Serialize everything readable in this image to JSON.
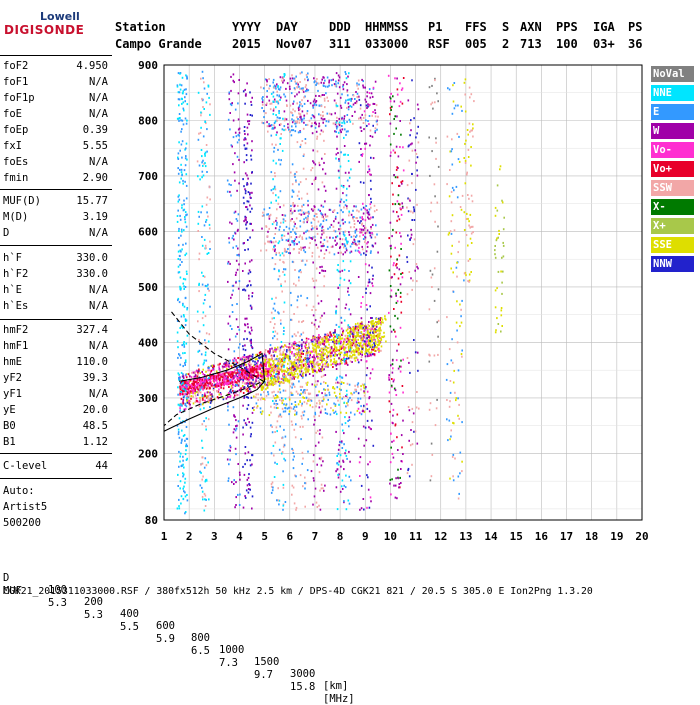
{
  "logo": {
    "brand": "Lowell",
    "name": "DIGISONDE"
  },
  "header": {
    "labels": [
      "Station",
      "YYYY",
      "DAY",
      "DDD",
      "HHMMSS",
      "P1",
      "FFS",
      "S",
      "AXN",
      "PPS",
      "IGA",
      "PS"
    ],
    "values": [
      "Campo Grande",
      "2015",
      "Nov07",
      "311",
      "033000",
      "RSF",
      "005",
      "2",
      "713",
      "100",
      "03+",
      "36"
    ]
  },
  "params": [
    {
      "k": "foF2",
      "v": "4.950"
    },
    {
      "k": "foF1",
      "v": "N/A"
    },
    {
      "k": "foF1p",
      "v": "N/A"
    },
    {
      "k": "foE",
      "v": "N/A"
    },
    {
      "k": "foEp",
      "v": "0.39"
    },
    {
      "k": "fxI",
      "v": "5.55"
    },
    {
      "k": "foEs",
      "v": "N/A"
    },
    {
      "k": "fmin",
      "v": "2.90"
    },
    {
      "k": "MUF(D)",
      "v": "15.77"
    },
    {
      "k": "M(D)",
      "v": "3.19"
    },
    {
      "k": "D",
      "v": "N/A"
    },
    {
      "k": "h`F",
      "v": "330.0"
    },
    {
      "k": "h`F2",
      "v": "330.0"
    },
    {
      "k": "h`E",
      "v": "N/A"
    },
    {
      "k": "h`Es",
      "v": "N/A"
    },
    {
      "k": "hmF2",
      "v": "327.4"
    },
    {
      "k": "hmF1",
      "v": "N/A"
    },
    {
      "k": "hmE",
      "v": "110.0"
    },
    {
      "k": "yF2",
      "v": "39.3"
    },
    {
      "k": "yF1",
      "v": "N/A"
    },
    {
      "k": "yE",
      "v": "20.0"
    },
    {
      "k": "B0",
      "v": "48.5"
    },
    {
      "k": "B1",
      "v": "1.12"
    },
    {
      "k": "C-level",
      "v": "44"
    }
  ],
  "auto": {
    "line1": "Auto:",
    "line2": "Artist5",
    "line3": "500200"
  },
  "legend": [
    {
      "label": "NoVal",
      "color": "#808080"
    },
    {
      "label": "NNE",
      "color": "#00e5ff"
    },
    {
      "label": "E",
      "color": "#3399ff"
    },
    {
      "label": "W",
      "color": "#a000a8"
    },
    {
      "label": "Vo-",
      "color": "#ff2ed1"
    },
    {
      "label": "Vo+",
      "color": "#e8002a"
    },
    {
      "label": "SSW",
      "color": "#f2a7a7"
    },
    {
      "label": "X-",
      "color": "#007a00"
    },
    {
      "label": "X+",
      "color": "#a8c84a"
    },
    {
      "label": "SSE",
      "color": "#dede00"
    },
    {
      "label": "NNW",
      "color": "#2222cc"
    }
  ],
  "footer": {
    "d_label": "D",
    "d_values": [
      "100",
      "200",
      "400",
      "600",
      "800",
      "1000",
      "1500",
      "3000"
    ],
    "d_unit": "[km]",
    "muf_label": "MUF",
    "muf_values": [
      "5.3",
      "5.3",
      "5.5",
      "5.9",
      "6.5",
      "7.3",
      "9.7",
      "15.8"
    ],
    "muf_unit": "[MHz]",
    "info": "CGK21_2015311033000.RSF / 380fx512h 50 kHz 2.5 km / DPS-4D CGK21 821 / 20.5 S 305.0 E Ion2Png 1.3.20"
  },
  "chart_data": {
    "type": "scatter",
    "xlim": [
      1,
      20
    ],
    "ylim": [
      80,
      900
    ],
    "x_ticks": [
      "1",
      "2",
      "3",
      "4",
      "5",
      "6",
      "7",
      "8",
      "9",
      "10",
      "11",
      "12",
      "13",
      "14",
      "15",
      "16",
      "17",
      "18",
      "19",
      "20"
    ],
    "y_ticks": [
      "80",
      "200",
      "300",
      "400",
      "500",
      "600",
      "700",
      "800",
      "900"
    ],
    "grid": true,
    "clusters": [
      {
        "name": "F2 trace",
        "fmin": 1.6,
        "fmax": 9.6,
        "hmin": 310,
        "hmax": 460,
        "n": 1400,
        "colors": [
          "#e8002a",
          "#ff2ed1",
          "#dede00",
          "#a000a8",
          "#f2a7a7",
          "#2222cc"
        ]
      },
      {
        "name": "F2 trace core",
        "fmin": 1.6,
        "fmax": 5.2,
        "hmin": 318,
        "hmax": 370,
        "n": 500,
        "colors": [
          "#e8002a",
          "#ff2ed1"
        ]
      },
      {
        "name": "F2 trace yellow",
        "fmin": 4.8,
        "fmax": 9.8,
        "hmin": 340,
        "hmax": 460,
        "n": 500,
        "colors": [
          "#dede00"
        ]
      },
      {
        "name": "sub-trace low",
        "fmin": 4.5,
        "fmax": 9.0,
        "hmin": 270,
        "hmax": 330,
        "n": 220,
        "colors": [
          "#f2a7a7",
          "#3399ff",
          "#dede00"
        ]
      },
      {
        "name": "multi-hop 2",
        "fmin": 4.8,
        "fmax": 9.5,
        "hmin": 560,
        "hmax": 650,
        "n": 320,
        "colors": [
          "#f2a7a7",
          "#a000a8",
          "#3399ff"
        ]
      },
      {
        "name": "multi-hop 3",
        "fmin": 4.8,
        "fmax": 9.5,
        "hmin": 780,
        "hmax": 880,
        "n": 320,
        "colors": [
          "#f2a7a7",
          "#3399ff",
          "#a000a8"
        ]
      },
      {
        "name": "column 1.6",
        "fmin": 1.5,
        "fmax": 1.9,
        "hmin": 90,
        "hmax": 890,
        "n": 280,
        "colors": [
          "#00e5ff",
          "#3399ff"
        ]
      },
      {
        "name": "column 2.5",
        "fmin": 2.3,
        "fmax": 2.8,
        "hmin": 90,
        "hmax": 890,
        "n": 180,
        "colors": [
          "#00e5ff",
          "#3399ff",
          "#f2a7a7"
        ]
      },
      {
        "name": "column 3.7",
        "fmin": 3.5,
        "fmax": 4.0,
        "hmin": 90,
        "hmax": 890,
        "n": 160,
        "colors": [
          "#3399ff",
          "#a000a8"
        ]
      },
      {
        "name": "column 4.2",
        "fmin": 4.1,
        "fmax": 4.5,
        "hmin": 100,
        "hmax": 880,
        "n": 200,
        "colors": [
          "#a000a8",
          "#2222cc"
        ]
      },
      {
        "name": "column 5.5",
        "fmin": 5.2,
        "fmax": 5.8,
        "hmin": 100,
        "hmax": 890,
        "n": 220,
        "colors": [
          "#3399ff",
          "#00e5ff",
          "#f2a7a7"
        ]
      },
      {
        "name": "column 6.3",
        "fmin": 6.0,
        "fmax": 6.7,
        "hmin": 100,
        "hmax": 890,
        "n": 200,
        "colors": [
          "#f2a7a7",
          "#3399ff"
        ]
      },
      {
        "name": "column 7.0",
        "fmin": 6.8,
        "fmax": 7.4,
        "hmin": 100,
        "hmax": 880,
        "n": 180,
        "colors": [
          "#a000a8",
          "#f2a7a7"
        ]
      },
      {
        "name": "column 8.0",
        "fmin": 7.8,
        "fmax": 8.4,
        "hmin": 100,
        "hmax": 890,
        "n": 220,
        "colors": [
          "#3399ff",
          "#00e5ff",
          "#a000a8"
        ]
      },
      {
        "name": "column 8.9",
        "fmin": 8.7,
        "fmax": 9.3,
        "hmin": 100,
        "hmax": 880,
        "n": 180,
        "colors": [
          "#a000a8",
          "#ff2ed1",
          "#2222cc"
        ]
      },
      {
        "name": "column 10.2",
        "fmin": 9.9,
        "fmax": 10.5,
        "hmin": 120,
        "hmax": 890,
        "n": 200,
        "colors": [
          "#e8002a",
          "#007a00",
          "#ff2ed1",
          "#a000a8"
        ]
      },
      {
        "name": "column 10.8",
        "fmin": 10.6,
        "fmax": 11.1,
        "hmin": 150,
        "hmax": 880,
        "n": 90,
        "colors": [
          "#a000a8",
          "#2222cc",
          "#f2a7a7"
        ]
      },
      {
        "name": "column 11.7",
        "fmin": 11.5,
        "fmax": 11.9,
        "hmin": 150,
        "hmax": 880,
        "n": 50,
        "colors": [
          "#808080",
          "#f2a7a7"
        ]
      },
      {
        "name": "column 12.5",
        "fmin": 12.2,
        "fmax": 12.9,
        "hmin": 120,
        "hmax": 880,
        "n": 110,
        "colors": [
          "#f2a7a7",
          "#3399ff",
          "#dede00"
        ]
      },
      {
        "name": "column 13.1",
        "fmin": 12.9,
        "fmax": 13.3,
        "hmin": 500,
        "hmax": 880,
        "n": 60,
        "colors": [
          "#f2a7a7",
          "#dede00"
        ]
      },
      {
        "name": "column 14.3",
        "fmin": 14.1,
        "fmax": 14.5,
        "hmin": 420,
        "hmax": 720,
        "n": 40,
        "colors": [
          "#dede00",
          "#a8c84a"
        ]
      }
    ],
    "profile_solid": [
      [
        1.6,
        330
      ],
      [
        2.5,
        337
      ],
      [
        3.5,
        350
      ],
      [
        4.3,
        365
      ],
      [
        4.9,
        380
      ],
      [
        5.0,
        330
      ],
      [
        4.7,
        315
      ],
      [
        4.0,
        300
      ],
      [
        3.0,
        282
      ],
      [
        2.0,
        262
      ],
      [
        1.0,
        240
      ]
    ],
    "profile_dashed": [
      [
        1.3,
        455
      ],
      [
        2.0,
        415
      ],
      [
        3.0,
        380
      ],
      [
        4.0,
        356
      ],
      [
        4.95,
        330
      ],
      [
        4.3,
        318
      ],
      [
        3.5,
        305
      ],
      [
        2.5,
        290
      ],
      [
        1.5,
        270
      ],
      [
        1.0,
        250
      ]
    ]
  }
}
